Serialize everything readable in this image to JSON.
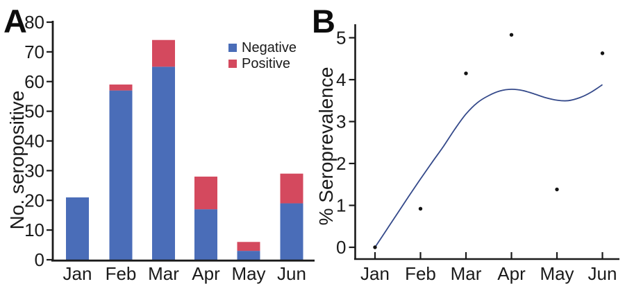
{
  "figure": {
    "panels": [
      {
        "label": "A"
      },
      {
        "label": "B"
      }
    ]
  },
  "chart_data": [
    {
      "type": "bar",
      "stacked": true,
      "title": "",
      "xlabel": "",
      "ylabel": "No. seropositive",
      "categories": [
        "Jan",
        "Feb",
        "Mar",
        "Apr",
        "May",
        "Jun"
      ],
      "series": [
        {
          "name": "Negative",
          "color": "#4a6db8",
          "values": [
            21,
            57,
            65,
            17,
            3,
            19
          ]
        },
        {
          "name": "Positive",
          "color": "#d4495e",
          "values": [
            0,
            2,
            9,
            11,
            3,
            10
          ]
        }
      ],
      "totals": [
        21,
        59,
        74,
        28,
        6,
        29
      ],
      "ylim": [
        0,
        80
      ],
      "yticks": [
        0,
        10,
        20,
        30,
        40,
        50,
        60,
        70,
        80
      ],
      "legend_position": "top-right",
      "grid": false,
      "axis_color": "#1a1a1a"
    },
    {
      "type": "scatter",
      "title": "",
      "xlabel": "",
      "ylabel": "% Seroprevalence",
      "categories": [
        "Jan",
        "Feb",
        "Mar",
        "Apr",
        "May",
        "Jun"
      ],
      "points": [
        0.0,
        0.92,
        4.15,
        5.07,
        1.38,
        4.63
      ],
      "point_color": "#141414",
      "trend_line": {
        "color": "#34498a",
        "x": [
          1,
          1.25,
          1.5,
          1.75,
          2,
          2.25,
          2.5,
          2.75,
          3,
          3.25,
          3.5,
          3.75,
          4,
          4.25,
          4.5,
          4.75,
          5,
          5.25,
          5.5,
          5.75,
          6
        ],
        "y": [
          0.0,
          0.41,
          0.82,
          1.23,
          1.63,
          2.02,
          2.4,
          2.81,
          3.18,
          3.45,
          3.62,
          3.73,
          3.77,
          3.74,
          3.66,
          3.57,
          3.51,
          3.5,
          3.57,
          3.7,
          3.88
        ]
      },
      "ylim": [
        0,
        5
      ],
      "yticks": [
        0,
        1,
        2,
        3,
        4,
        5
      ],
      "grid": false,
      "axis_color": "#1a1a1a"
    }
  ]
}
